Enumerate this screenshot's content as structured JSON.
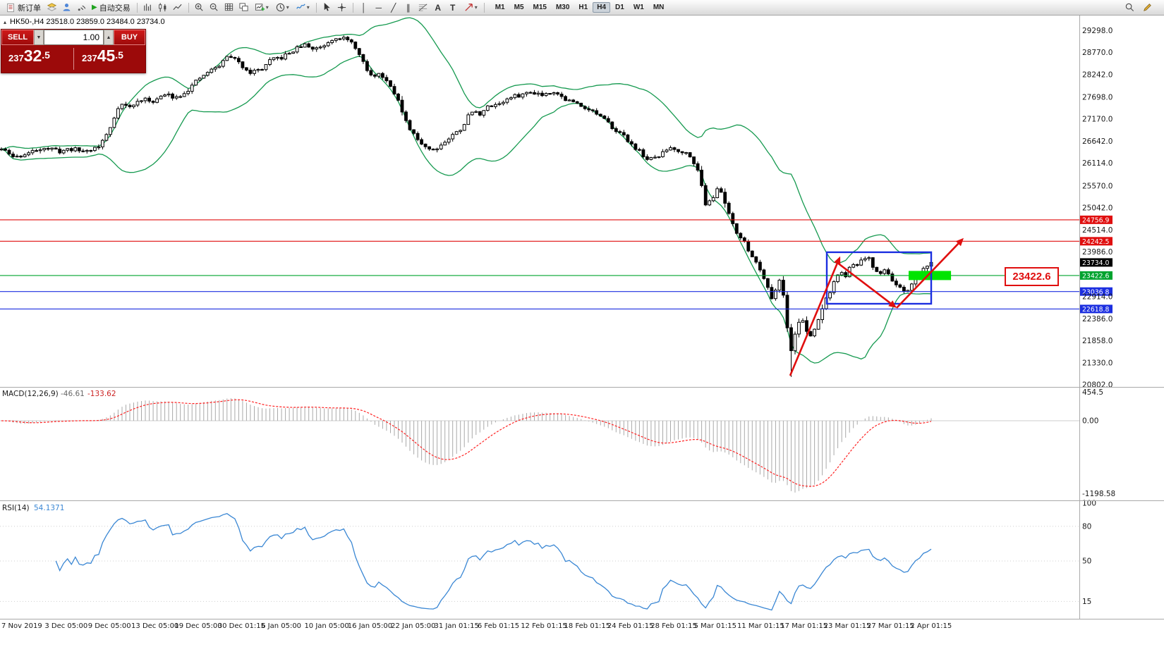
{
  "toolbar": {
    "new_order": "新订单",
    "autotrading": "自动交易",
    "timeframes": [
      "M1",
      "M5",
      "M15",
      "M30",
      "H1",
      "H4",
      "D1",
      "W1",
      "MN"
    ],
    "active_timeframe": "H4",
    "glyphs": {
      "play": "▶",
      "caret": "▾",
      "vline": "│",
      "hline": "─",
      "trend": "╱",
      "channel": "∥",
      "text_tool": "A",
      "label_tool": "T",
      "spin_down": "▼",
      "spin_up": "▲",
      "header_marker": "▴"
    }
  },
  "order_panel": {
    "sell_label": "SELL",
    "buy_label": "BUY",
    "volume": "1.00",
    "sell_price": {
      "prefix": "237",
      "big": "32",
      "suffix": ".5"
    },
    "buy_price": {
      "prefix": "237",
      "big": "45",
      "suffix": ".5"
    }
  },
  "chart": {
    "header": "HK50-,H4  23518.0 23859.0 23484.0 23734.0",
    "highlight_price_label": "23422.6"
  },
  "chart_data": [
    {
      "type": "candlestick",
      "symbol": "HK50-",
      "timeframe": "H4",
      "ohlc": {
        "open": 23518.0,
        "high": 23859.0,
        "low": 23484.0,
        "close": 23734.0
      },
      "last_close": 23734.0,
      "candles_count": 240,
      "seed": 11,
      "price_view_top": 29690,
      "price_view_bottom": 20750,
      "y_axis_ticks": [
        29298.0,
        28770.0,
        28242.0,
        27698.0,
        27170.0,
        26642.0,
        26114.0,
        25570.0,
        25042.0,
        24514.0,
        23986.0,
        22914.0,
        22386.0,
        21858.0,
        21330.0,
        20802.0
      ],
      "levels": [
        {
          "price": 24756.9,
          "label": "24756.9",
          "color": "#e00f0f",
          "line": true
        },
        {
          "price": 24242.5,
          "label": "24242.5",
          "color": "#e00f0f",
          "line": true
        },
        {
          "price": 23734.0,
          "label": "23734.0",
          "color": "#000000",
          "line": false
        },
        {
          "price": 23422.6,
          "label": "23422.6",
          "color": "#00a32e",
          "line": true
        },
        {
          "price": 23036.8,
          "label": "23036.8",
          "color": "#1c2fe0",
          "line": true
        },
        {
          "price": 22618.8,
          "label": "22618.8",
          "color": "#1c2fe0",
          "line": true
        }
      ],
      "bollinger": {
        "period": 20,
        "deviation": 2,
        "color": "#169a50"
      },
      "price_path": [
        [
          0.0,
          26450
        ],
        [
          0.014,
          26250
        ],
        [
          0.033,
          26380
        ],
        [
          0.044,
          26500
        ],
        [
          0.063,
          26400
        ],
        [
          0.074,
          26460
        ],
        [
          0.09,
          26400
        ],
        [
          0.105,
          26520
        ],
        [
          0.116,
          26900
        ],
        [
          0.127,
          27550
        ],
        [
          0.139,
          27450
        ],
        [
          0.15,
          27650
        ],
        [
          0.162,
          27600
        ],
        [
          0.177,
          27760
        ],
        [
          0.188,
          27700
        ],
        [
          0.2,
          27860
        ],
        [
          0.211,
          28100
        ],
        [
          0.222,
          28300
        ],
        [
          0.234,
          28450
        ],
        [
          0.245,
          28720
        ],
        [
          0.256,
          28500
        ],
        [
          0.268,
          28300
        ],
        [
          0.279,
          28360
        ],
        [
          0.291,
          28600
        ],
        [
          0.302,
          28650
        ],
        [
          0.313,
          28800
        ],
        [
          0.325,
          28960
        ],
        [
          0.336,
          28850
        ],
        [
          0.347,
          28950
        ],
        [
          0.359,
          29150
        ],
        [
          0.37,
          29100
        ],
        [
          0.381,
          28900
        ],
        [
          0.387,
          28600
        ],
        [
          0.397,
          28200
        ],
        [
          0.408,
          28260
        ],
        [
          0.42,
          27950
        ],
        [
          0.427,
          27600
        ],
        [
          0.432,
          27250
        ],
        [
          0.438,
          26950
        ],
        [
          0.446,
          26720
        ],
        [
          0.454,
          26560
        ],
        [
          0.463,
          26420
        ],
        [
          0.473,
          26560
        ],
        [
          0.484,
          26760
        ],
        [
          0.495,
          26960
        ],
        [
          0.505,
          27360
        ],
        [
          0.514,
          27300
        ],
        [
          0.526,
          27500
        ],
        [
          0.537,
          27560
        ],
        [
          0.549,
          27700
        ],
        [
          0.56,
          27760
        ],
        [
          0.571,
          27830
        ],
        [
          0.583,
          27760
        ],
        [
          0.594,
          27850
        ],
        [
          0.605,
          27660
        ],
        [
          0.617,
          27560
        ],
        [
          0.628,
          27460
        ],
        [
          0.64,
          27300
        ],
        [
          0.651,
          27100
        ],
        [
          0.662,
          26900
        ],
        [
          0.674,
          26660
        ],
        [
          0.685,
          26420
        ],
        [
          0.696,
          26180
        ],
        [
          0.708,
          26300
        ],
        [
          0.719,
          26500
        ],
        [
          0.731,
          26400
        ],
        [
          0.742,
          26300
        ],
        [
          0.751,
          25800
        ],
        [
          0.757,
          25150
        ],
        [
          0.765,
          25300
        ],
        [
          0.772,
          25540
        ],
        [
          0.781,
          25000
        ],
        [
          0.791,
          24450
        ],
        [
          0.799,
          24200
        ],
        [
          0.806,
          23950
        ],
        [
          0.814,
          23650
        ],
        [
          0.822,
          23300
        ],
        [
          0.829,
          22860
        ],
        [
          0.837,
          23320
        ],
        [
          0.842,
          22900
        ],
        [
          0.848,
          21480
        ],
        [
          0.854,
          22080
        ],
        [
          0.86,
          22450
        ],
        [
          0.866,
          22060
        ],
        [
          0.871,
          21950
        ],
        [
          0.877,
          22260
        ],
        [
          0.882,
          22600
        ],
        [
          0.888,
          22900
        ],
        [
          0.895,
          23240
        ],
        [
          0.901,
          23500
        ],
        [
          0.907,
          23400
        ],
        [
          0.913,
          23600
        ],
        [
          0.92,
          23690
        ],
        [
          0.926,
          23790
        ],
        [
          0.932,
          23850
        ],
        [
          0.938,
          23600
        ],
        [
          0.943,
          23460
        ],
        [
          0.949,
          23560
        ],
        [
          0.956,
          23400
        ],
        [
          0.962,
          23200
        ],
        [
          0.968,
          23060
        ],
        [
          0.973,
          22950
        ],
        [
          0.979,
          23200
        ],
        [
          0.985,
          23400
        ],
        [
          0.991,
          23560
        ],
        [
          0.996,
          23680
        ],
        [
          1.0,
          23734
        ]
      ],
      "x_labels": [
        "7 Nov 2019",
        "3 Dec 05:00",
        "9 Dec 05:00",
        "13 Dec 05:00",
        "19 Dec 05:00",
        "30 Dec 01:15",
        "6 Jan 05:00",
        "10 Jan 05:00",
        "16 Jan 05:00",
        "22 Jan 05:00",
        "31 Jan 01:15",
        "6 Feb 01:15",
        "12 Feb 01:15",
        "18 Feb 01:15",
        "24 Feb 01:15",
        "28 Feb 01:15",
        "5 Mar 01:15",
        "11 Mar 01:15",
        "17 Mar 01:15",
        "23 Mar 01:15",
        "27 Mar 01:15",
        "2 Apr 01:15"
      ],
      "annotations": {
        "rectangle": {
          "x1f": 0.766,
          "x2f": 0.8627,
          "price_top": 23980,
          "price_bottom": 22745,
          "color": "#1c2fe0"
        },
        "arrows": [
          {
            "x1f": 0.732,
            "p1": 21020,
            "x2f": 0.7784,
            "p2": 23880,
            "color": "#e00f0f"
          },
          {
            "x1f": 0.7752,
            "p1": 23740,
            "x2f": 0.8307,
            "p2": 22645,
            "color": "#e00f0f"
          },
          {
            "x1f": 0.8307,
            "p1": 22645,
            "x2f": 0.8928,
            "p2": 24320,
            "color": "#e00f0f"
          }
        ],
        "highlight": {
          "x1f": 0.8418,
          "x2f": 0.8811,
          "price": 23422.6,
          "color": "#00e400",
          "label": "23422.6"
        }
      }
    },
    {
      "type": "macd",
      "label": "MACD(12,26,9)",
      "value_main": "-46.61",
      "value_signal": "-133.62",
      "params": {
        "fast": 12,
        "slow": 26,
        "signal": 9
      },
      "scale_labels": [
        "454.5",
        "0.00",
        "-1198.58"
      ],
      "scale_max": 454.5,
      "scale_min": -1198.58,
      "histogram_color": "#a9a9a9",
      "signal_color": "#ff2222"
    },
    {
      "type": "rsi",
      "label": "RSI(14)",
      "value": "54.1371",
      "period": 14,
      "levels": [
        100,
        80,
        50,
        15
      ],
      "line_color": "#3a87d4"
    }
  ]
}
